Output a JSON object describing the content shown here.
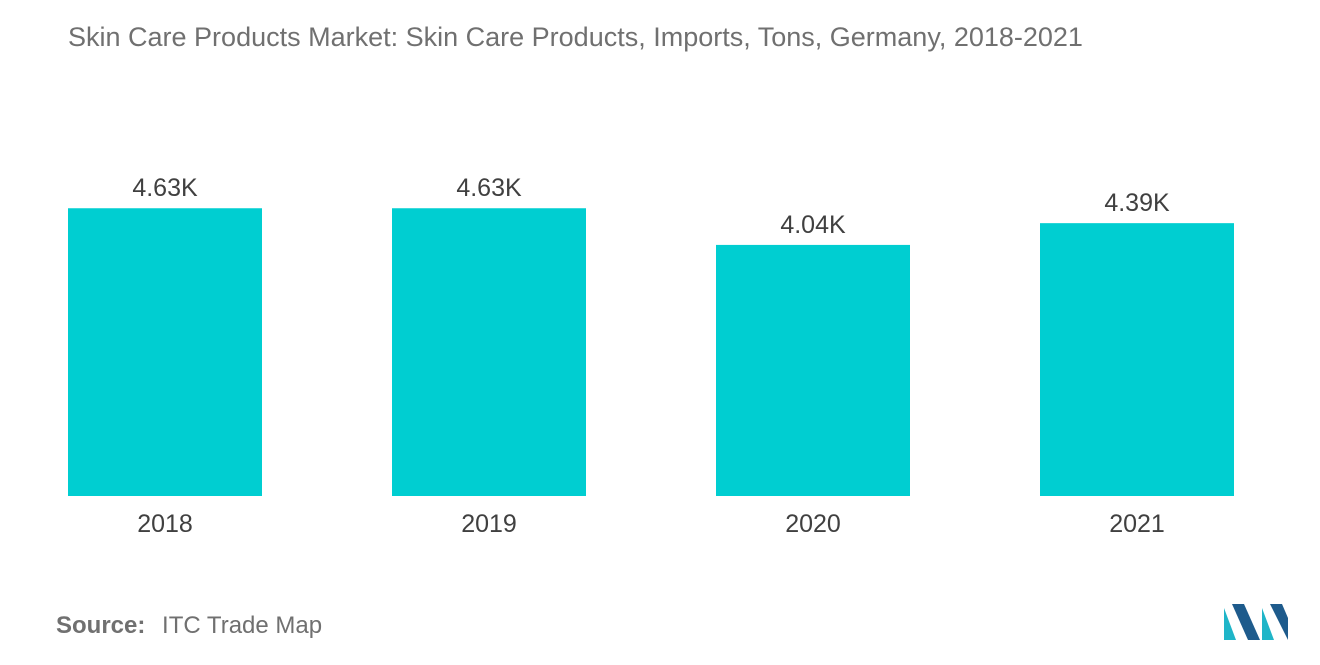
{
  "chart_data": {
    "type": "bar",
    "title": "Skin Care Products Market: Skin Care Products, Imports, Tons, Germany, 2018-2021",
    "categories": [
      "2018",
      "2019",
      "2020",
      "2021"
    ],
    "values": [
      4630,
      4630,
      4040,
      4390
    ],
    "data_labels": [
      "4.63K",
      "4.63K",
      "4.04K",
      "4.39K"
    ],
    "xlabel": "",
    "ylabel": "",
    "ylim": [
      0,
      4650
    ],
    "grid": false,
    "legend": "none",
    "bar_color": "#00CED1"
  },
  "source": {
    "label": "Source:",
    "text": "ITC Trade Map"
  },
  "logo": {
    "icon": "mordor-intelligence-logo-icon",
    "colors": [
      "#1FB5C8",
      "#1E5B8C"
    ]
  }
}
